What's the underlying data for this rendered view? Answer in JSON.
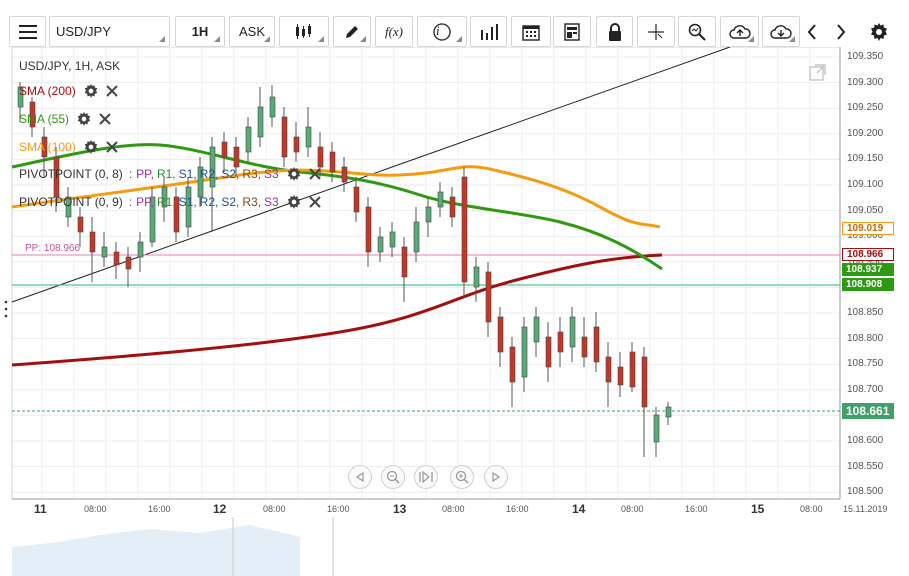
{
  "toolbar": {
    "symbol": "USD/JPY",
    "timeframe": "1H",
    "price_type": "ASK",
    "fx_label": "f(x)",
    "info_label": "i"
  },
  "legend": {
    "title": "USD/JPY, 1H, ASK",
    "sma200": "SMA (200)",
    "sma55": "SMA (55)",
    "sma100": "SMA (100)",
    "pivot1": {
      "name": "PIVOTPOINT (0, 8)",
      "sep": ":",
      "pp": "PP,",
      "r1": "R1,",
      "s1": "S1,",
      "r2": "R2,",
      "s2": "S2,",
      "r3": "R3,",
      "s3": "S3"
    },
    "pivot2": {
      "name": "PIVOTPOINT (0, 9)",
      "sep": ":",
      "pp": "PP,",
      "r1": "R1,",
      "s1": "S1,",
      "r2": "R2,",
      "s2": "S2,",
      "r3": "R3,",
      "s3": "S3"
    },
    "pp_label": "PP: 108.966"
  },
  "price_axis": [
    "109.350",
    "109.300",
    "109.250",
    "109.200",
    "109.150",
    "109.100",
    "109.050",
    "109.000",
    "108.950",
    "108.900",
    "108.850",
    "108.800",
    "108.750",
    "108.700",
    "108.650",
    "108.600",
    "108.550",
    "108.500"
  ],
  "price_tags": {
    "sma100": "109.019",
    "pp": "108.966",
    "sma55": "108.937",
    "sma200": "108.908",
    "last": "108.661"
  },
  "time_axis": {
    "days": [
      "11",
      "12",
      "13",
      "14",
      "15"
    ],
    "hours": [
      "08:00",
      "16:00",
      "08:00",
      "16:00",
      "08:00",
      "16:00",
      "08:00",
      "16:00",
      "08:00"
    ],
    "end_date": "15.11.2019"
  },
  "colors": {
    "sma200": "#a30e0e",
    "sma55": "#2e9a12",
    "sma100": "#f39c12",
    "pivot_pp": "#e580b8",
    "pivot_green": "#48c98e",
    "bull": "#5aaa78",
    "bear": "#c0392b",
    "pivot_r_color": "#2c8a2c",
    "pivot_s_color": "#1f4fa0",
    "pivot_purple": "#9b2fa6"
  }
}
